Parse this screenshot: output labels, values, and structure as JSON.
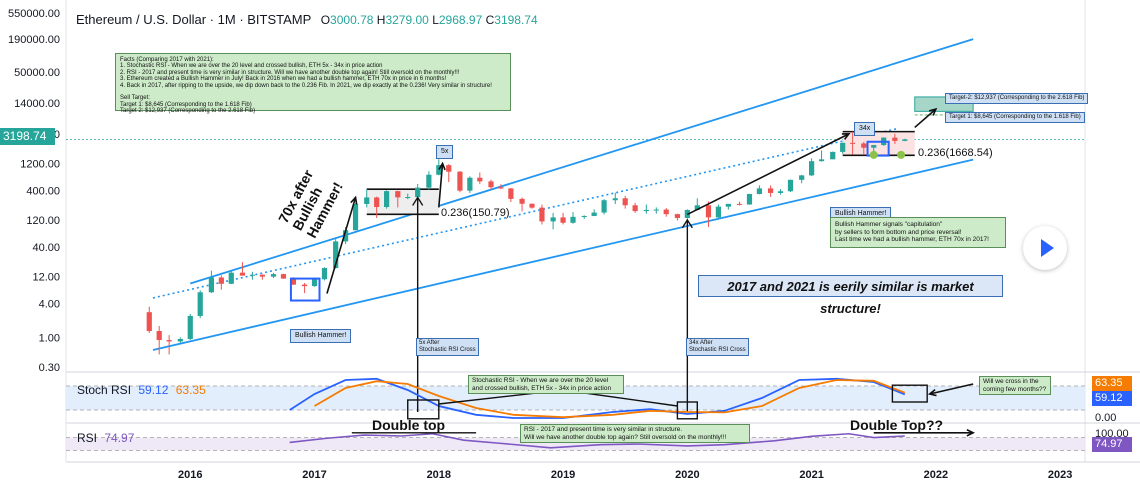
{
  "header": {
    "symbol": "Ethereum / U.S. Dollar",
    "interval": "1M",
    "exchange": "BITSTAMP",
    "open_label": "O",
    "open": "3000.78",
    "high_label": "H",
    "high": "3279.00",
    "low_label": "L",
    "low": "2968.97",
    "close_label": "C",
    "close": "3198.74"
  },
  "colors": {
    "up": "#26a69a",
    "down": "#ef5350",
    "channel": "#2196f3",
    "stoch_k": "#2962ff",
    "stoch_d": "#f57c00",
    "rsi": "#7e57c2",
    "last_price_bg": "#26a69a"
  },
  "price_axis": {
    "ticks": [
      "550000.00",
      "190000.00",
      "50000.00",
      "14000.00",
      "4000.00",
      "1200.00",
      "400.00",
      "120.00",
      "40.00",
      "12.00",
      "4.00",
      "1.00",
      "0.30"
    ],
    "last_price": "3198.74"
  },
  "time_axis": {
    "ticks": [
      "2016",
      "2017",
      "2018",
      "2019",
      "2020",
      "2021",
      "2022",
      "2023"
    ]
  },
  "indicators": {
    "stoch": {
      "label": "Stoch RSI",
      "k": "59.12",
      "d": "63.35",
      "tag_d": "63.35",
      "tag_k": "59.12",
      "zero": "0.00"
    },
    "rsi": {
      "label": "RSI",
      "value": "74.97",
      "top": "100.00",
      "tag": "74.97"
    }
  },
  "annotations": {
    "facts": "Facts (Comparing 2017 with 2021):\n1. Stochastic RSI - When we are over the 20 level and crossed bullish, ETH 5x - 34x in price action\n2. RSI - 2017 and present time is very similar in structure. Will we have another double top again! Still oversold on the monthly!!!\n3. Ethereum created a Bullish Hammer in July! Back in 2016 when we had a bullish hammer, ETH 70x in price in 6 months!\n4. Back in 2017, after ripping to the upside, we dip down back to the 0.236 Fib. In 2021, we dip exactly at the 0.236! Very similar in structure!\n\nSell Target:\nTarget 1: $8,645 (Corresponding to the 1.618 Fib)\nTarget 2: $12,937 (Corresponding to the 2.618 Fib)",
    "seventy_x": "70x after\nBullish Hammer!",
    "bullish_hammer_2016": "Bullish Hammer!",
    "five_x": "5x",
    "fib_2017": "0.236(150.79)",
    "five_x_after": "5x After\nStochastic RSI Cross",
    "thirtyfour_x": "34x",
    "thirtyfour_x_after": "34x After\nStochastic RSI Cross",
    "fib_2021": "0.236(1668.54)",
    "target2": "Target-2: $12,937 (Corresponding to the 2.618 Fib)",
    "target1": "Target 1: $8,645 (Corresponding to the 1.618 Fib)",
    "bullish_hammer_2021_title": "Bullish Hammer!",
    "bullish_hammer_2021_body": "Bullish Hammer signals \"capitulation\"\nby sellers to form bottom and price reversal!\nLast time we had a bullish hammer, ETH 70x in 2017!",
    "eerily": "2017 and 2021 is eerily similar is market structure!",
    "stoch_note": "Stochastic RSI - When we are over the 20 level\nand crossed bullish, ETH 5x - 34x in price action",
    "cross_question": "Will we cross in the\ncoming few months??",
    "double_top_1": "Double top",
    "double_top_2": "Double Top??",
    "rsi_note": "RSI - 2017 and present time is very similar in structure.\nWill we have another double top again? Still oversold on the monthly!!!"
  },
  "chart_data": {
    "type": "candlestick",
    "title": "Ethereum / U.S. Dollar · 1M · BITSTAMP",
    "y_scale": "log",
    "x_range": [
      2015.0,
      2023.2
    ],
    "candles": [
      {
        "t": 2015.67,
        "o": 2.8,
        "h": 3.5,
        "l": 1.2,
        "c": 1.3
      },
      {
        "t": 2015.75,
        "o": 1.3,
        "h": 1.6,
        "l": 0.5,
        "c": 0.9
      },
      {
        "t": 2015.83,
        "o": 0.9,
        "h": 1.1,
        "l": 0.5,
        "c": 0.85
      },
      {
        "t": 2015.92,
        "o": 0.85,
        "h": 1.0,
        "l": 0.8,
        "c": 0.94
      },
      {
        "t": 2016.0,
        "o": 0.94,
        "h": 2.6,
        "l": 0.9,
        "c": 2.4
      },
      {
        "t": 2016.08,
        "o": 2.4,
        "h": 6.8,
        "l": 2.2,
        "c": 6.3
      },
      {
        "t": 2016.17,
        "o": 6.3,
        "h": 15.2,
        "l": 6.1,
        "c": 11.5
      },
      {
        "t": 2016.25,
        "o": 11.5,
        "h": 12.6,
        "l": 7.0,
        "c": 8.9
      },
      {
        "t": 2016.33,
        "o": 8.9,
        "h": 14.9,
        "l": 8.8,
        "c": 14.0
      },
      {
        "t": 2016.42,
        "o": 14.0,
        "h": 21.5,
        "l": 13.0,
        "c": 12.4
      },
      {
        "t": 2016.5,
        "o": 12.4,
        "h": 14.5,
        "l": 10.5,
        "c": 12.9
      },
      {
        "t": 2016.58,
        "o": 12.9,
        "h": 13.0,
        "l": 10.5,
        "c": 11.9
      },
      {
        "t": 2016.67,
        "o": 11.9,
        "h": 13.9,
        "l": 11.2,
        "c": 13.2
      },
      {
        "t": 2016.75,
        "o": 13.2,
        "h": 13.4,
        "l": 10.9,
        "c": 11.0
      },
      {
        "t": 2016.83,
        "o": 11.0,
        "h": 11.6,
        "l": 8.5,
        "c": 8.6
      },
      {
        "t": 2016.92,
        "o": 8.6,
        "h": 9.2,
        "l": 6.1,
        "c": 8.1
      },
      {
        "t": 2017.0,
        "o": 8.1,
        "h": 11.4,
        "l": 7.9,
        "c": 10.7
      },
      {
        "t": 2017.08,
        "o": 10.7,
        "h": 17.5,
        "l": 10.2,
        "c": 16.9
      },
      {
        "t": 2017.17,
        "o": 16.9,
        "h": 55.0,
        "l": 16.5,
        "c": 50.0
      },
      {
        "t": 2017.25,
        "o": 50.0,
        "h": 90.0,
        "l": 45.0,
        "c": 79.0
      },
      {
        "t": 2017.33,
        "o": 79.0,
        "h": 237.0,
        "l": 78.0,
        "c": 230.0
      },
      {
        "t": 2017.42,
        "o": 230.0,
        "h": 420.0,
        "l": 200.0,
        "c": 300.0
      },
      {
        "t": 2017.5,
        "o": 300.0,
        "h": 310.0,
        "l": 130.0,
        "c": 203.0
      },
      {
        "t": 2017.58,
        "o": 203.0,
        "h": 400.0,
        "l": 190.0,
        "c": 388.0
      },
      {
        "t": 2017.67,
        "o": 388.0,
        "h": 395.0,
        "l": 200.0,
        "c": 301.0
      },
      {
        "t": 2017.75,
        "o": 301.0,
        "h": 350.0,
        "l": 280.0,
        "c": 305.0
      },
      {
        "t": 2017.83,
        "o": 305.0,
        "h": 520.0,
        "l": 290.0,
        "c": 447.0
      },
      {
        "t": 2017.92,
        "o": 447.0,
        "h": 870.0,
        "l": 410.0,
        "c": 756.0
      },
      {
        "t": 2018.0,
        "o": 756.0,
        "h": 1420.0,
        "l": 740.0,
        "c": 1118.0
      },
      {
        "t": 2018.08,
        "o": 1118.0,
        "h": 1160.0,
        "l": 560.0,
        "c": 856.0
      },
      {
        "t": 2018.17,
        "o": 856.0,
        "h": 880.0,
        "l": 370.0,
        "c": 395.0
      },
      {
        "t": 2018.25,
        "o": 395.0,
        "h": 710.0,
        "l": 360.0,
        "c": 670.0
      },
      {
        "t": 2018.33,
        "o": 670.0,
        "h": 830.0,
        "l": 520.0,
        "c": 577.0
      },
      {
        "t": 2018.42,
        "o": 577.0,
        "h": 620.0,
        "l": 410.0,
        "c": 455.0
      },
      {
        "t": 2018.5,
        "o": 455.0,
        "h": 515.0,
        "l": 420.0,
        "c": 433.0
      },
      {
        "t": 2018.58,
        "o": 433.0,
        "h": 440.0,
        "l": 250.0,
        "c": 283.0
      },
      {
        "t": 2018.67,
        "o": 283.0,
        "h": 300.0,
        "l": 170.0,
        "c": 232.0
      },
      {
        "t": 2018.75,
        "o": 232.0,
        "h": 235.0,
        "l": 190.0,
        "c": 198.0
      },
      {
        "t": 2018.83,
        "o": 198.0,
        "h": 225.0,
        "l": 100.0,
        "c": 113.0
      },
      {
        "t": 2018.92,
        "o": 113.0,
        "h": 160.0,
        "l": 82.0,
        "c": 133.0
      },
      {
        "t": 2019.0,
        "o": 133.0,
        "h": 160.0,
        "l": 100.0,
        "c": 107.0
      },
      {
        "t": 2019.08,
        "o": 107.0,
        "h": 165.0,
        "l": 103.0,
        "c": 136.0
      },
      {
        "t": 2019.17,
        "o": 136.0,
        "h": 145.0,
        "l": 125.0,
        "c": 141.0
      },
      {
        "t": 2019.25,
        "o": 141.0,
        "h": 185.0,
        "l": 140.0,
        "c": 162.0
      },
      {
        "t": 2019.33,
        "o": 162.0,
        "h": 280.0,
        "l": 150.0,
        "c": 268.0
      },
      {
        "t": 2019.42,
        "o": 268.0,
        "h": 365.0,
        "l": 230.0,
        "c": 290.0
      },
      {
        "t": 2019.5,
        "o": 290.0,
        "h": 320.0,
        "l": 190.0,
        "c": 218.0
      },
      {
        "t": 2019.58,
        "o": 218.0,
        "h": 240.0,
        "l": 160.0,
        "c": 172.0
      },
      {
        "t": 2019.67,
        "o": 172.0,
        "h": 225.0,
        "l": 155.0,
        "c": 180.0
      },
      {
        "t": 2019.75,
        "o": 180.0,
        "h": 200.0,
        "l": 155.0,
        "c": 183.0
      },
      {
        "t": 2019.83,
        "o": 183.0,
        "h": 195.0,
        "l": 137.0,
        "c": 152.0
      },
      {
        "t": 2019.92,
        "o": 152.0,
        "h": 155.0,
        "l": 117.0,
        "c": 130.0
      },
      {
        "t": 2020.0,
        "o": 130.0,
        "h": 185.0,
        "l": 126.0,
        "c": 180.0
      },
      {
        "t": 2020.08,
        "o": 180.0,
        "h": 290.0,
        "l": 176.0,
        "c": 218.0
      },
      {
        "t": 2020.17,
        "o": 218.0,
        "h": 255.0,
        "l": 90.0,
        "c": 133.0
      },
      {
        "t": 2020.25,
        "o": 133.0,
        "h": 225.0,
        "l": 130.0,
        "c": 206.0
      },
      {
        "t": 2020.33,
        "o": 206.0,
        "h": 227.0,
        "l": 183.0,
        "c": 231.0
      },
      {
        "t": 2020.42,
        "o": 231.0,
        "h": 253.0,
        "l": 216.0,
        "c": 225.0
      },
      {
        "t": 2020.5,
        "o": 225.0,
        "h": 350.0,
        "l": 222.0,
        "c": 345.0
      },
      {
        "t": 2020.58,
        "o": 345.0,
        "h": 490.0,
        "l": 340.0,
        "c": 434.0
      },
      {
        "t": 2020.67,
        "o": 434.0,
        "h": 490.0,
        "l": 308.0,
        "c": 360.0
      },
      {
        "t": 2020.75,
        "o": 360.0,
        "h": 420.0,
        "l": 335.0,
        "c": 386.0
      },
      {
        "t": 2020.83,
        "o": 386.0,
        "h": 622.0,
        "l": 374.0,
        "c": 615.0
      },
      {
        "t": 2020.92,
        "o": 615.0,
        "h": 755.0,
        "l": 535.0,
        "c": 737.0
      },
      {
        "t": 2021.0,
        "o": 737.0,
        "h": 1475.0,
        "l": 715.0,
        "c": 1314.0
      },
      {
        "t": 2021.08,
        "o": 1314.0,
        "h": 2040.0,
        "l": 1290.0,
        "c": 1417.0
      },
      {
        "t": 2021.17,
        "o": 1417.0,
        "h": 1945.0,
        "l": 1430.0,
        "c": 1918.0
      },
      {
        "t": 2021.25,
        "o": 1918.0,
        "h": 2800.0,
        "l": 1770.0,
        "c": 2773.0
      },
      {
        "t": 2021.33,
        "o": 2773.0,
        "h": 4380.0,
        "l": 1735.0,
        "c": 2707.0
      },
      {
        "t": 2021.42,
        "o": 2707.0,
        "h": 2890.0,
        "l": 1700.0,
        "c": 2275.0
      },
      {
        "t": 2021.5,
        "o": 2275.0,
        "h": 2555.0,
        "l": 1718.0,
        "c": 2536.0
      },
      {
        "t": 2021.58,
        "o": 2536.0,
        "h": 3470.0,
        "l": 2450.0,
        "c": 3430.0
      },
      {
        "t": 2021.67,
        "o": 3430.0,
        "h": 4025.0,
        "l": 2650.0,
        "c": 3000.0
      },
      {
        "t": 2021.75,
        "o": 3000.0,
        "h": 3279.0,
        "l": 2968.97,
        "c": 3198.74
      }
    ],
    "stoch_rsi": {
      "k": [
        {
          "t": 2016.8,
          "v": 20
        },
        {
          "t": 2017.0,
          "v": 60
        },
        {
          "t": 2017.25,
          "v": 95
        },
        {
          "t": 2017.5,
          "v": 98
        },
        {
          "t": 2017.75,
          "v": 70
        },
        {
          "t": 2018.0,
          "v": 30
        },
        {
          "t": 2018.3,
          "v": 8
        },
        {
          "t": 2018.6,
          "v": 0
        },
        {
          "t": 2019.0,
          "v": 0
        },
        {
          "t": 2019.4,
          "v": 15
        },
        {
          "t": 2019.7,
          "v": 22
        },
        {
          "t": 2020.0,
          "v": 10
        },
        {
          "t": 2020.3,
          "v": 18
        },
        {
          "t": 2020.6,
          "v": 50
        },
        {
          "t": 2020.9,
          "v": 95
        },
        {
          "t": 2021.2,
          "v": 98
        },
        {
          "t": 2021.5,
          "v": 90
        },
        {
          "t": 2021.75,
          "v": 59.12
        }
      ],
      "d": [
        {
          "t": 2017.0,
          "v": 30
        },
        {
          "t": 2017.25,
          "v": 75
        },
        {
          "t": 2017.5,
          "v": 92
        },
        {
          "t": 2017.75,
          "v": 85
        },
        {
          "t": 2018.0,
          "v": 55
        },
        {
          "t": 2018.3,
          "v": 25
        },
        {
          "t": 2018.6,
          "v": 8
        },
        {
          "t": 2019.0,
          "v": 2
        },
        {
          "t": 2019.4,
          "v": 8
        },
        {
          "t": 2019.7,
          "v": 18
        },
        {
          "t": 2020.0,
          "v": 15
        },
        {
          "t": 2020.3,
          "v": 14
        },
        {
          "t": 2020.6,
          "v": 30
        },
        {
          "t": 2020.9,
          "v": 75
        },
        {
          "t": 2021.2,
          "v": 95
        },
        {
          "t": 2021.5,
          "v": 93
        },
        {
          "t": 2021.75,
          "v": 63.35
        }
      ]
    },
    "rsi": [
      {
        "t": 2016.8,
        "v": 55
      },
      {
        "t": 2017.1,
        "v": 68
      },
      {
        "t": 2017.4,
        "v": 78
      },
      {
        "t": 2017.7,
        "v": 75
      },
      {
        "t": 2017.95,
        "v": 82
      },
      {
        "t": 2018.2,
        "v": 62
      },
      {
        "t": 2018.5,
        "v": 52
      },
      {
        "t": 2018.9,
        "v": 38
      },
      {
        "t": 2019.3,
        "v": 48
      },
      {
        "t": 2019.6,
        "v": 50
      },
      {
        "t": 2020.0,
        "v": 44
      },
      {
        "t": 2020.3,
        "v": 48
      },
      {
        "t": 2020.7,
        "v": 60
      },
      {
        "t": 2021.0,
        "v": 74
      },
      {
        "t": 2021.3,
        "v": 82
      },
      {
        "t": 2021.5,
        "v": 70
      },
      {
        "t": 2021.75,
        "v": 74.97
      }
    ],
    "channel": {
      "upper": [
        {
          "t": 2016.0,
          "v": 9
        },
        {
          "t": 2022.3,
          "v": 190000
        }
      ],
      "lower": [
        {
          "t": 2015.7,
          "v": 0.6
        },
        {
          "t": 2022.3,
          "v": 1400
        }
      ],
      "middle_dotted": [
        {
          "t": 2015.7,
          "v": 5
        },
        {
          "t": 2021.7,
          "v": 5000
        }
      ]
    },
    "fib_levels": [
      {
        "label": "0.236",
        "value": 150.79
      },
      {
        "label": "0.236",
        "value": 1668.54
      }
    ],
    "targets": [
      8645,
      12937
    ]
  }
}
